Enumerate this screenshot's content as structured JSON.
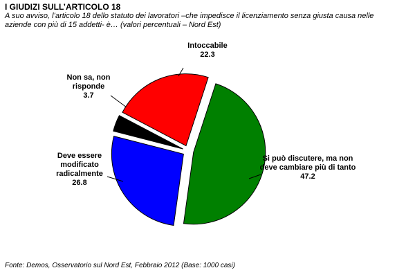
{
  "chart_data": {
    "type": "pie",
    "title": "I GIUDIZI SULL’ARTICOLO 18",
    "subtitle": "A suo avviso, l’articolo 18 dello statuto dei lavoratori –che impedisce il licenziamento senza giusta causa nelle aziende con più di 15 addetti- è… (valori percentuali – Nord Est)",
    "categories": [
      "Si può discutere, ma non deve cambiare più di tanto",
      "Deve essere modificato radicalmente",
      "Non sa, non risponde",
      "Intoccabile"
    ],
    "values": [
      47.2,
      26.8,
      3.7,
      22.3
    ],
    "colors": [
      "#008000",
      "#0000ff",
      "#000000",
      "#ff0000"
    ],
    "source": "Fonte: Demos, Osservatorio sul Nord Est, Febbraio 2012 (Base: 1000 casi)"
  }
}
